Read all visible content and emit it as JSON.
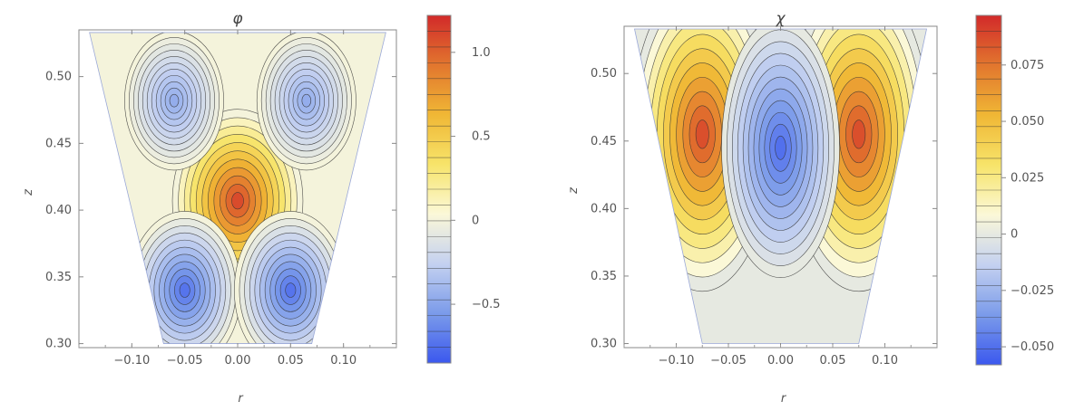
{
  "chart_data": [
    {
      "type": "heatmap",
      "subtype": "contour",
      "title": "φ",
      "xlabel": "r",
      "ylabel": "z",
      "xlim": [
        -0.15,
        0.15
      ],
      "ylim": [
        0.297,
        0.535
      ],
      "x_ticks": [
        -0.1,
        -0.05,
        0.0,
        0.05,
        0.1
      ],
      "x_tick_labels": [
        "−0.10",
        "−0.05",
        "0.00",
        "0.05",
        "0.10"
      ],
      "y_ticks": [
        0.3,
        0.35,
        0.4,
        0.45,
        0.5
      ],
      "y_tick_labels": [
        "0.30",
        "0.35",
        "0.40",
        "0.45",
        "0.50"
      ],
      "domain": {
        "z_bottom": 0.3,
        "z_top": 0.533,
        "r_half_bottom": 0.07,
        "r_half_top": 0.14
      },
      "features": [
        {
          "r": 0.0,
          "z": 0.407,
          "value": 1.2
        },
        {
          "r": -0.05,
          "z": 0.34,
          "value": -0.8
        },
        {
          "r": 0.05,
          "z": 0.34,
          "value": -0.8
        },
        {
          "r": -0.06,
          "z": 0.482,
          "value": -0.5
        },
        {
          "r": 0.065,
          "z": 0.482,
          "value": -0.5
        }
      ],
      "colorbar": {
        "range": [
          -0.85,
          1.22
        ],
        "ticks": [
          1.0,
          0.5,
          0,
          -0.5
        ],
        "tick_labels": [
          "1.0",
          "0.5",
          "0",
          "−0.5"
        ],
        "colors": [
          "#3b58ee",
          "#7b9bea",
          "#c4d1f0",
          "#fbf8d8",
          "#f7e46a",
          "#f0b735",
          "#e2762e",
          "#d22a2a"
        ]
      },
      "grid": false,
      "legend": "colorbar-right"
    },
    {
      "type": "heatmap",
      "subtype": "contour",
      "title": "χ",
      "xlabel": "r",
      "ylabel": "z",
      "xlim": [
        -0.15,
        0.15
      ],
      "ylim": [
        0.297,
        0.535
      ],
      "x_ticks": [
        -0.1,
        -0.05,
        0.0,
        0.05,
        0.1
      ],
      "x_tick_labels": [
        "−0.10",
        "−0.05",
        "0.00",
        "0.05",
        "0.10"
      ],
      "y_ticks": [
        0.3,
        0.35,
        0.4,
        0.45,
        0.5
      ],
      "y_tick_labels": [
        "0.30",
        "0.35",
        "0.40",
        "0.45",
        "0.50"
      ],
      "domain": {
        "z_bottom": 0.3,
        "z_top": 0.533,
        "r_half_bottom": 0.075,
        "r_half_top": 0.14
      },
      "features": [
        {
          "r": -0.075,
          "z": 0.455,
          "value": 0.095
        },
        {
          "r": 0.075,
          "z": 0.455,
          "value": 0.095
        },
        {
          "r": 0.0,
          "z": 0.445,
          "value": -0.055
        }
      ],
      "colorbar": {
        "range": [
          -0.058,
          0.097
        ],
        "ticks": [
          0.075,
          0.05,
          0.025,
          0,
          -0.025,
          -0.05
        ],
        "tick_labels": [
          "0.075",
          "0.050",
          "0.025",
          "0",
          "−0.025",
          "−0.050"
        ],
        "colors": [
          "#3b58ee",
          "#7b9bea",
          "#c4d1f0",
          "#fbf8d8",
          "#f7e46a",
          "#f0b735",
          "#e2762e",
          "#d22a2a"
        ]
      },
      "grid": false,
      "legend": "colorbar-right"
    }
  ]
}
